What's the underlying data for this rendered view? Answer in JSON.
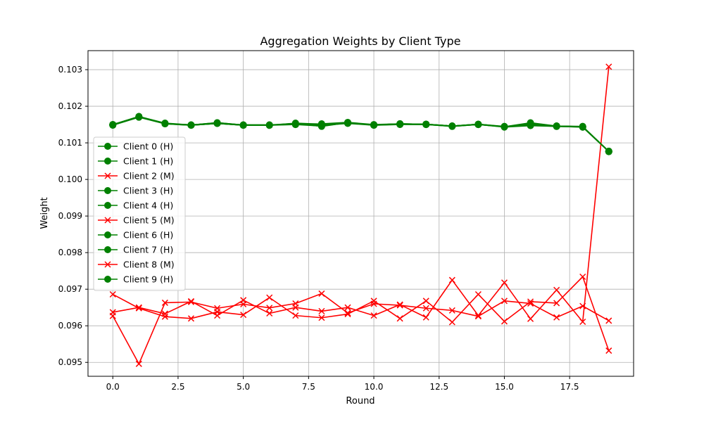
{
  "chart_data": {
    "type": "line",
    "title": "Aggregation Weights by Client Type",
    "xlabel": "Round",
    "ylabel": "Weight",
    "xlim": [
      -0.95,
      19.95
    ],
    "ylim": [
      0.09462,
      0.10352
    ],
    "xticks": [
      0.0,
      2.5,
      5.0,
      7.5,
      10.0,
      12.5,
      15.0,
      17.5
    ],
    "xtick_labels": [
      "0.0",
      "2.5",
      "5.0",
      "7.5",
      "10.0",
      "12.5",
      "15.0",
      "17.5"
    ],
    "yticks": [
      0.095,
      0.096,
      0.097,
      0.098,
      0.099,
      0.1,
      0.101,
      0.102,
      0.103
    ],
    "ytick_labels": [
      "0.095",
      "0.096",
      "0.097",
      "0.098",
      "0.099",
      "0.100",
      "0.101",
      "0.102",
      "0.103"
    ],
    "grid": true,
    "legend_position": "center-left",
    "colors": {
      "H": "#008000",
      "M": "#ff0000"
    },
    "x": [
      0,
      1,
      2,
      3,
      4,
      5,
      6,
      7,
      8,
      9,
      10,
      11,
      12,
      13,
      14,
      15,
      16,
      17,
      18,
      19
    ],
    "series": [
      {
        "name": "Client 0 (H)",
        "group": "H",
        "marker": "circle",
        "values": [
          0.10148,
          0.1017,
          0.10152,
          0.10148,
          0.10153,
          0.10148,
          0.10148,
          0.10153,
          0.10145,
          0.10155,
          0.10148,
          0.1015,
          0.1015,
          0.10145,
          0.1015,
          0.10143,
          0.10147,
          0.10145,
          0.10143,
          0.10076
        ]
      },
      {
        "name": "Client 1 (H)",
        "group": "H",
        "marker": "circle",
        "values": [
          0.1015,
          0.10172,
          0.10153,
          0.10149,
          0.10155,
          0.10149,
          0.10149,
          0.1015,
          0.1015,
          0.10154,
          0.10149,
          0.10152,
          0.10151,
          0.10146,
          0.10151,
          0.10144,
          0.1015,
          0.10146,
          0.10144,
          0.10077
        ]
      },
      {
        "name": "Client 2 (M)",
        "group": "M",
        "marker": "x",
        "values": [
          0.09686,
          0.09648,
          0.09625,
          0.0962,
          0.09638,
          0.0963,
          0.09677,
          0.09628,
          0.09622,
          0.09632,
          0.09668,
          0.0962,
          0.09668,
          0.0961,
          0.09686,
          0.09612,
          0.09666,
          0.09662,
          0.09734,
          0.09532
        ]
      },
      {
        "name": "Client 3 (H)",
        "group": "H",
        "marker": "circle",
        "values": [
          0.10149,
          0.10171,
          0.10152,
          0.10148,
          0.10153,
          0.10148,
          0.10148,
          0.10152,
          0.10148,
          0.10153,
          0.10148,
          0.10151,
          0.1015,
          0.10146,
          0.1015,
          0.10144,
          0.10152,
          0.10145,
          0.10143,
          0.10076
        ]
      },
      {
        "name": "Client 4 (H)",
        "group": "H",
        "marker": "circle",
        "values": [
          0.10149,
          0.10171,
          0.10153,
          0.10149,
          0.10154,
          0.10149,
          0.10148,
          0.10154,
          0.10151,
          0.10155,
          0.10149,
          0.10152,
          0.10151,
          0.10146,
          0.1015,
          0.10144,
          0.10155,
          0.10146,
          0.10144,
          0.10077
        ]
      },
      {
        "name": "Client 5 (M)",
        "group": "M",
        "marker": "x",
        "values": [
          0.09637,
          0.0965,
          0.09633,
          0.09667,
          0.09628,
          0.0967,
          0.09634,
          0.0965,
          0.0964,
          0.0965,
          0.09628,
          0.09658,
          0.09623,
          0.09725,
          0.09628,
          0.09718,
          0.09619,
          0.09698,
          0.09611,
          0.10308
        ]
      },
      {
        "name": "Client 6 (H)",
        "group": "H",
        "marker": "circle",
        "values": [
          0.1015,
          0.10172,
          0.10154,
          0.10149,
          0.10155,
          0.10149,
          0.10149,
          0.10151,
          0.10152,
          0.10156,
          0.1015,
          0.10152,
          0.10151,
          0.10146,
          0.10151,
          0.10145,
          0.10149,
          0.10146,
          0.10145,
          0.10077
        ]
      },
      {
        "name": "Client 7 (H)",
        "group": "H",
        "marker": "circle",
        "values": [
          0.10149,
          0.10171,
          0.10153,
          0.10148,
          0.10153,
          0.10148,
          0.10148,
          0.1015,
          0.10146,
          0.10155,
          0.10149,
          0.10151,
          0.1015,
          0.10145,
          0.1015,
          0.10144,
          0.10148,
          0.10145,
          0.10144,
          0.10076
        ]
      },
      {
        "name": "Client 8 (M)",
        "group": "M",
        "marker": "x",
        "values": [
          0.09627,
          0.09496,
          0.09663,
          0.09665,
          0.09648,
          0.09659,
          0.09649,
          0.09661,
          0.09688,
          0.09635,
          0.0966,
          0.09656,
          0.09648,
          0.09642,
          0.09626,
          0.09668,
          0.09661,
          0.09623,
          0.09654,
          0.09614
        ]
      },
      {
        "name": "Client 9 (H)",
        "group": "H",
        "marker": "circle",
        "values": [
          0.1015,
          0.10172,
          0.10153,
          0.10149,
          0.10154,
          0.10148,
          0.10149,
          0.10153,
          0.10149,
          0.10155,
          0.10149,
          0.10152,
          0.10151,
          0.10146,
          0.10151,
          0.10144,
          0.10153,
          0.10146,
          0.10144,
          0.10077
        ]
      }
    ]
  }
}
